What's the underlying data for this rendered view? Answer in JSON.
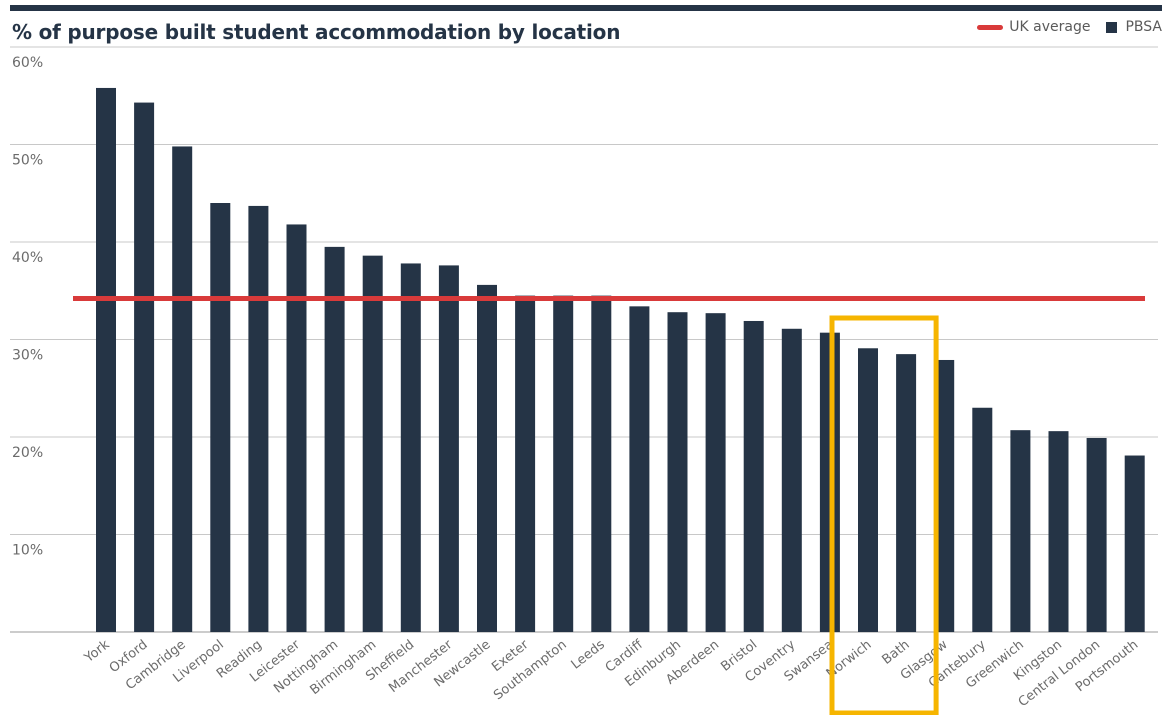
{
  "colors": {
    "bar": "#253446",
    "average": "#d93a3a",
    "highlight": "#f6b500",
    "grid": "#c8c8c8",
    "rule": "#253446"
  },
  "chart_data": {
    "type": "bar",
    "title": "% of purpose built student accommodation by location",
    "legend": {
      "position": "top-right",
      "items": [
        {
          "label": "UK average",
          "kind": "line"
        },
        {
          "label": "PBSA",
          "kind": "box"
        }
      ]
    },
    "yticks": [
      "10%",
      "20%",
      "30%",
      "40%",
      "50%",
      "60%"
    ],
    "ylim": [
      0,
      60
    ],
    "grid": true,
    "categories": [
      "York",
      "Oxford",
      "Cambridge",
      "Liverpool",
      "Reading",
      "Leicester",
      "Nottingham",
      "Birmingham",
      "Sheffield",
      "Manchester",
      "Newcastle",
      "Exeter",
      "Southampton",
      "Leeds",
      "Cardiff",
      "Edinburgh",
      "Aberdeen",
      "Bristol",
      "Coventry",
      "Swansea",
      "Norwich",
      "Bath",
      "Glasgow",
      "Cantebury",
      "Greenwich",
      "Kingston",
      "Central London",
      "Portsmouth"
    ],
    "series": [
      {
        "name": "PBSA",
        "values": [
          55.8,
          54.3,
          49.8,
          44.0,
          43.7,
          41.8,
          39.5,
          38.6,
          37.8,
          37.6,
          35.6,
          34.5,
          34.5,
          34.5,
          33.4,
          32.8,
          32.7,
          31.9,
          31.1,
          30.7,
          29.1,
          28.5,
          27.9,
          23.0,
          20.7,
          20.6,
          19.9,
          18.1
        ]
      }
    ],
    "uk_average": 34.2,
    "highlight": [
      "Norwich",
      "Bath"
    ]
  }
}
